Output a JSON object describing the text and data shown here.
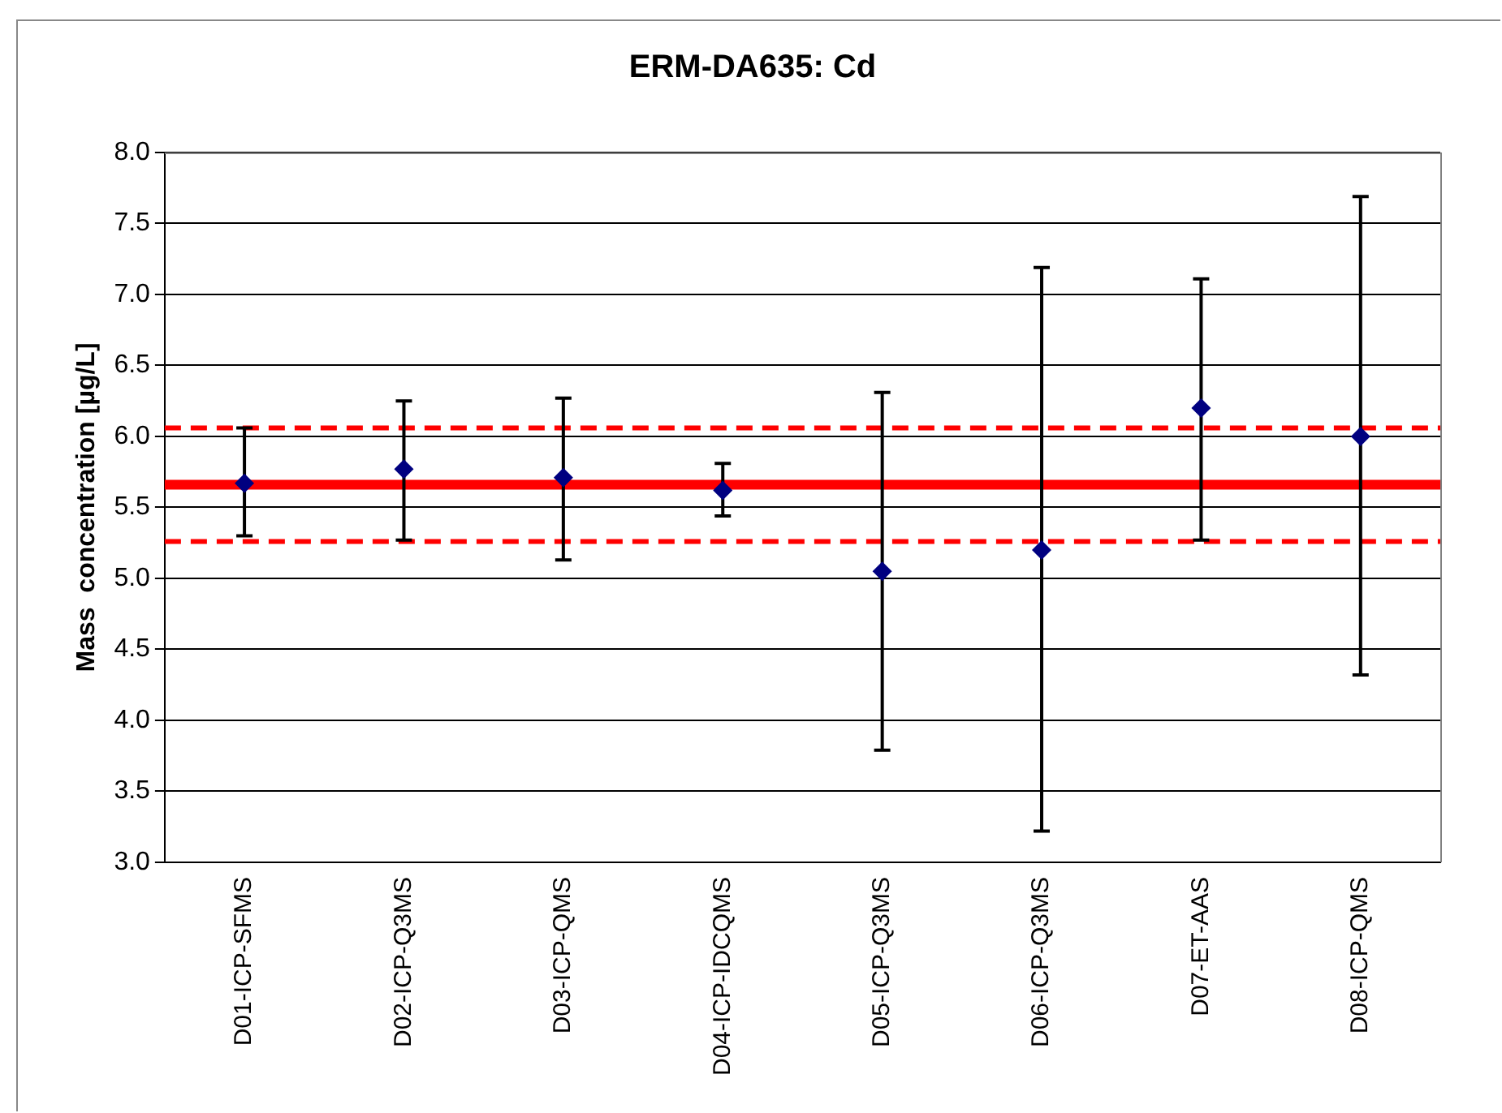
{
  "chart_data": {
    "type": "scatter",
    "title": "ERM-DA635: Cd",
    "ylabel": "Mass  concentration [µg/L]",
    "categories": [
      "D01-ICP-SFMS",
      "D02-ICP-Q3MS",
      "D03-ICP-QMS",
      "D04-ICP-IDCQMS",
      "D05-ICP-Q3MS",
      "D06-ICP-Q3MS",
      "D07-ET-AAS",
      "D08-ICP-QMS"
    ],
    "series": [
      {
        "color": "#000080",
        "values": [
          5.67,
          5.77,
          5.71,
          5.62,
          5.05,
          5.2,
          6.2,
          6.0
        ],
        "errors": [
          [
            5.3,
            6.06
          ],
          [
            5.27,
            6.25
          ],
          [
            5.13,
            6.27
          ],
          [
            5.44,
            5.81
          ],
          [
            3.79,
            6.31
          ],
          [
            3.22,
            7.19
          ],
          [
            5.27,
            7.11
          ],
          [
            4.32,
            7.69
          ]
        ]
      }
    ],
    "ylim": [
      3.0,
      8.0
    ],
    "yticks": [
      {
        "value": 3,
        "label": "3.0"
      },
      3.5,
      {
        "value": 4,
        "label": "4.0"
      },
      4.5,
      {
        "value": 5,
        "label": "5.0"
      },
      5.5,
      {
        "value": 6,
        "label": "6.0"
      },
      6.5,
      {
        "value": 7,
        "label": "7.0"
      },
      7.5,
      {
        "value": 8,
        "label": "8.0"
      }
    ],
    "grid": "y",
    "legend": false,
    "marker": "diamond",
    "ref_lines": [
      {
        "axis": "y",
        "value": 5.66,
        "color": "#ff0000",
        "line_style": "solid"
      },
      {
        "axis": "y",
        "value": 6.06,
        "color": "#ff0000",
        "line_style": "dashed"
      },
      {
        "axis": "y",
        "value": 5.26,
        "color": "#ff0000",
        "line_style": "dashed"
      }
    ]
  }
}
